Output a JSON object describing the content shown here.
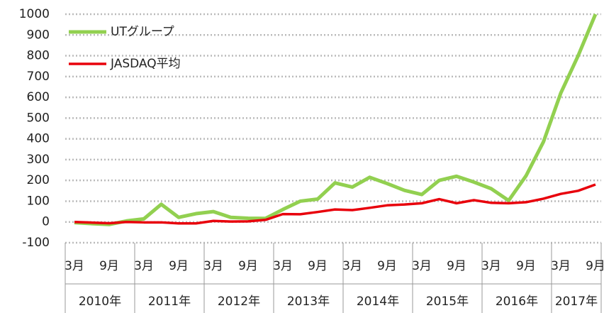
{
  "chart_data": {
    "type": "line",
    "categories": [
      "3月",
      null,
      "9月",
      null,
      "3月",
      null,
      "9月",
      null,
      "3月",
      null,
      "9月",
      null,
      "3月",
      null,
      "9月",
      null,
      "3月",
      null,
      "9月",
      null,
      "3月",
      null,
      "9月",
      null,
      "3月",
      null,
      "9月",
      null,
      "3月",
      null,
      "9月"
    ],
    "years": [
      "2010年",
      "2011年",
      "2012年",
      "2013年",
      "2014年",
      "2015年",
      "2016年",
      "2017年"
    ],
    "series": [
      {
        "name": "UTグループ",
        "color": "#92d050",
        "values": [
          -3,
          -8,
          -12,
          5,
          15,
          85,
          22,
          40,
          50,
          22,
          18,
          17,
          60,
          100,
          110,
          188,
          168,
          215,
          185,
          152,
          132,
          200,
          220,
          192,
          160,
          103,
          222,
          385,
          620,
          800,
          1000
        ]
      },
      {
        "name": "JASDAQ平均",
        "color": "#e8000b",
        "values": [
          0,
          -3,
          -6,
          0,
          -2,
          -2,
          -7,
          -7,
          5,
          2,
          3,
          10,
          38,
          37,
          48,
          60,
          57,
          68,
          80,
          84,
          90,
          110,
          90,
          105,
          92,
          90,
          95,
          112,
          135,
          150,
          180
        ]
      }
    ],
    "ylim": [
      -100,
      1000
    ],
    "yticks": [
      -100,
      0,
      100,
      200,
      300,
      400,
      500,
      600,
      700,
      800,
      900,
      1000
    ],
    "grid": true,
    "legend": "upper-left"
  }
}
